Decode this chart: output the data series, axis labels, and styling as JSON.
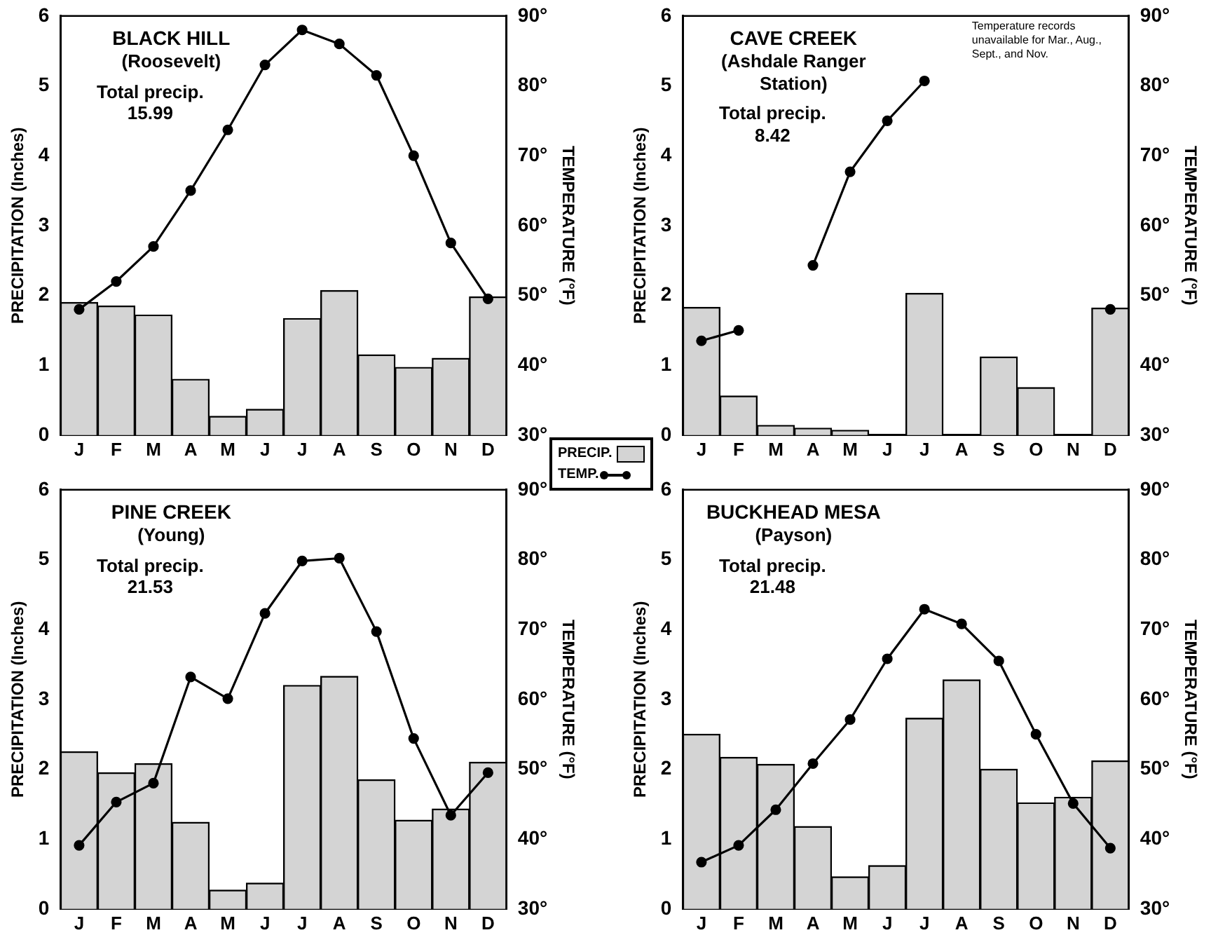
{
  "chart_data": [
    {
      "type": "bar",
      "title": "BLACK HILL",
      "subtitle": "(Roosevelt)",
      "ylabel": "PRECIPITATION (Inches)",
      "y2label": "TEMPERATURE (°F)",
      "categories": [
        "J",
        "F",
        "M",
        "A",
        "M",
        "J",
        "J",
        "A",
        "S",
        "O",
        "N",
        "D"
      ],
      "series": [
        {
          "name": "PRECIP.",
          "color": "#d4d4d4",
          "values": [
            1.9,
            1.85,
            1.72,
            0.8,
            0.27,
            0.37,
            1.67,
            2.07,
            1.15,
            0.97,
            1.1,
            1.98
          ]
        },
        {
          "name": "TEMP.",
          "type": "line",
          "axis": "y2",
          "color": "#000000",
          "values": [
            48,
            52,
            57,
            65,
            73.7,
            83,
            88,
            86,
            81.5,
            70,
            57.5,
            49.5
          ]
        }
      ],
      "ylim": [
        0,
        6
      ],
      "yticks": [
        0,
        1,
        2,
        3,
        4,
        5,
        6
      ],
      "y2lim": [
        30,
        90
      ],
      "y2ticks": [
        {
          "value": 30,
          "label": "30°"
        },
        {
          "value": 40,
          "label": "40°"
        },
        {
          "value": 50,
          "label": "50°"
        },
        {
          "value": 60,
          "label": "60°"
        },
        {
          "value": 70,
          "label": "70°"
        },
        {
          "value": 80,
          "label": "80°"
        },
        {
          "value": 90,
          "label": "90°"
        }
      ],
      "annotations": [
        "Total precip. 15.99"
      ],
      "marker": "circle",
      "line_style": "solid",
      "grid": false,
      "legend": "bottom right"
    },
    {
      "type": "bar",
      "title": "CAVE CREEK",
      "subtitle": "(Ashdale Ranger Station)",
      "ylabel": "PRECIPITATION (Inches)",
      "y2label": "TEMPERATURE (°F)",
      "categories": [
        "J",
        "F",
        "M",
        "A",
        "M",
        "J",
        "J",
        "A",
        "S",
        "O",
        "N",
        "D"
      ],
      "series": [
        {
          "color": "#d4d4d4",
          "values": [
            1.83,
            0.56,
            0.14,
            0.1,
            0.07,
            0,
            2.03,
            0,
            1.12,
            0.68,
            0,
            1.82
          ]
        },
        {
          "type": "line",
          "axis": "y2",
          "color": "#000000",
          "values": [
            43.5,
            45,
            null,
            54.3,
            67.7,
            75,
            80.7,
            null,
            null,
            null,
            null,
            48
          ]
        }
      ],
      "ylim": [
        0,
        6
      ],
      "yticks": [
        0,
        1,
        2,
        3,
        4,
        5,
        6
      ],
      "y2lim": [
        30,
        90
      ],
      "y2ticks": [
        {
          "value": 30,
          "label": "30°"
        },
        {
          "value": 40,
          "label": "40°"
        },
        {
          "value": 50,
          "label": "50°"
        },
        {
          "value": 60,
          "label": "60°"
        },
        {
          "value": 70,
          "label": "70°"
        },
        {
          "value": 80,
          "label": "80°"
        },
        {
          "value": 90,
          "label": "90°"
        }
      ],
      "annotations": [
        "Total precip. 8.42",
        "Temperature records unavailable for Mar., Aug., Sept., and Nov."
      ],
      "marker": "circle",
      "line_style": "solid",
      "grid": false
    },
    {
      "type": "bar",
      "title": "PINE CREEK",
      "subtitle": "(Young)",
      "ylabel": "PRECIPITATION (Inches)",
      "y2label": "TEMPERATURE (°F)",
      "categories": [
        "J",
        "F",
        "M",
        "A",
        "M",
        "J",
        "J",
        "A",
        "S",
        "O",
        "N",
        "D"
      ],
      "series": [
        {
          "color": "#d4d4d4",
          "values": [
            2.25,
            1.95,
            2.08,
            1.24,
            0.27,
            0.37,
            3.2,
            3.33,
            1.85,
            1.27,
            1.43,
            2.1
          ]
        },
        {
          "type": "line",
          "axis": "y2",
          "color": "#000000",
          "values": [
            39.1,
            45.3,
            48,
            63.2,
            60.1,
            72.3,
            79.8,
            80.2,
            69.7,
            54.4,
            43.4,
            49.5
          ]
        }
      ],
      "ylim": [
        0,
        6
      ],
      "yticks": [
        0,
        1,
        2,
        3,
        4,
        5,
        6
      ],
      "y2lim": [
        30,
        90
      ],
      "y2ticks": [
        {
          "value": 30,
          "label": "30°"
        },
        {
          "value": 40,
          "label": "40°"
        },
        {
          "value": 50,
          "label": "50°"
        },
        {
          "value": 60,
          "label": "60°"
        },
        {
          "value": 70,
          "label": "70°"
        },
        {
          "value": 80,
          "label": "80°"
        },
        {
          "value": 90,
          "label": "90°"
        }
      ],
      "annotations": [
        "Total precip. 21.53"
      ],
      "marker": "circle",
      "line_style": "solid",
      "grid": false
    },
    {
      "type": "bar",
      "title": "BUCKHEAD MESA",
      "subtitle": "(Payson)",
      "ylabel": "PRECIPITATION (Inches)",
      "y2label": "TEMPERATURE (°F)",
      "categories": [
        "J",
        "F",
        "M",
        "A",
        "M",
        "J",
        "J",
        "A",
        "S",
        "O",
        "N",
        "D"
      ],
      "series": [
        {
          "color": "#d4d4d4",
          "values": [
            2.5,
            2.17,
            2.07,
            1.18,
            0.46,
            0.62,
            2.73,
            3.28,
            2.0,
            1.52,
            1.6,
            2.12
          ]
        },
        {
          "type": "line",
          "axis": "y2",
          "color": "#000000",
          "values": [
            36.7,
            39.1,
            44.2,
            50.8,
            57.1,
            65.8,
            72.9,
            70.8,
            65.5,
            55,
            45.1,
            38.7
          ]
        }
      ],
      "ylim": [
        0,
        6
      ],
      "yticks": [
        0,
        1,
        2,
        3,
        4,
        5,
        6
      ],
      "y2lim": [
        30,
        90
      ],
      "y2ticks": [
        {
          "value": 30,
          "label": "30°"
        },
        {
          "value": 40,
          "label": "40°"
        },
        {
          "value": 50,
          "label": "50°"
        },
        {
          "value": 60,
          "label": "60°"
        },
        {
          "value": 70,
          "label": "70°"
        },
        {
          "value": 80,
          "label": "80°"
        },
        {
          "value": 90,
          "label": "90°"
        }
      ],
      "annotations": [
        "Total precip. 21.48"
      ],
      "marker": "circle",
      "line_style": "solid",
      "grid": false
    }
  ]
}
